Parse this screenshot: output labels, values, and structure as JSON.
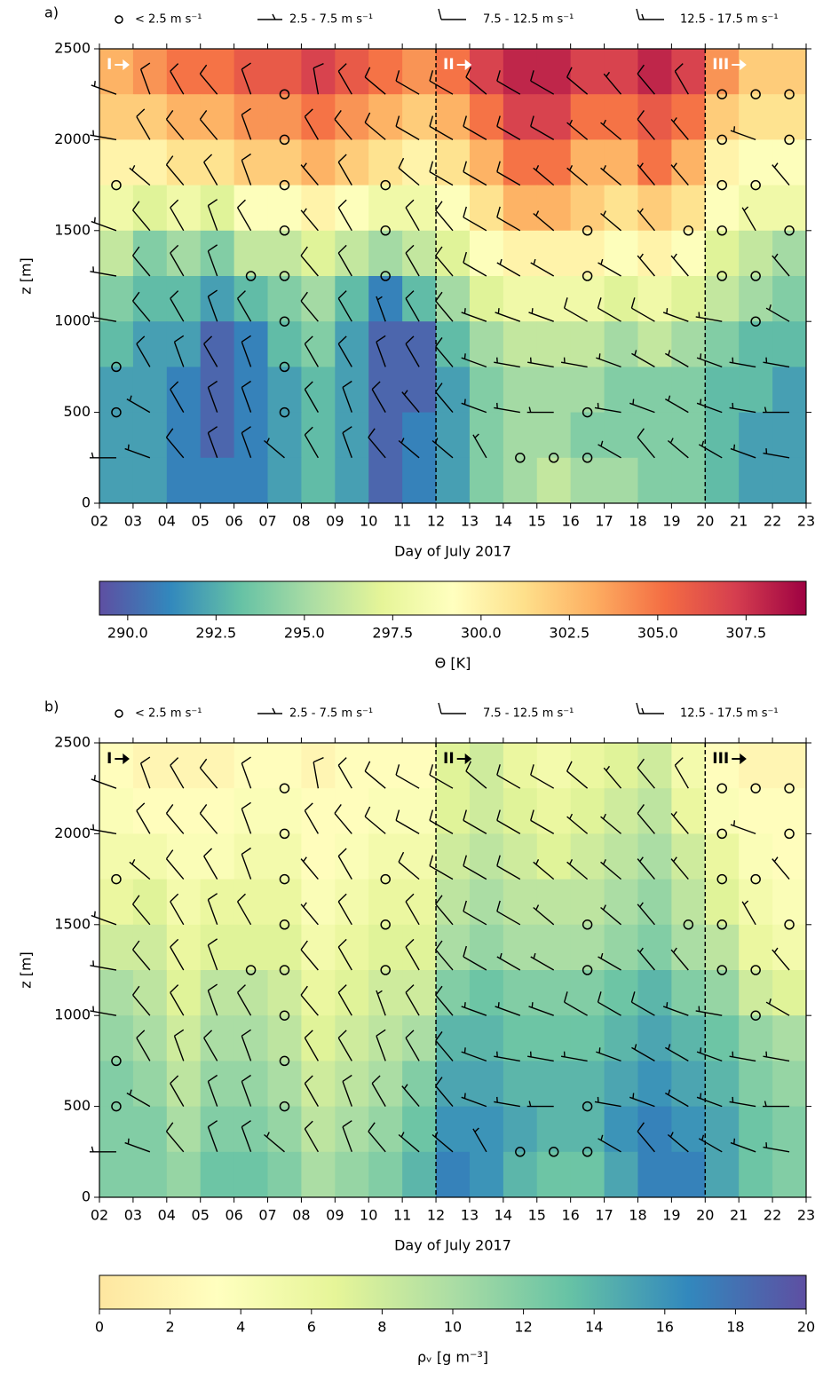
{
  "wind_barbs": {
    "x": [
      2.5,
      3.5,
      4.5,
      5.5,
      6.5,
      7.5,
      8.5,
      9.5,
      10.5,
      11.5,
      12.5,
      13.5,
      14.5,
      15.5,
      16.5,
      17.5,
      18.5,
      19.5,
      20.5,
      21.5,
      22.5
    ],
    "z": [
      2250,
      2000,
      1750,
      1500,
      1250,
      1000,
      750,
      500,
      250
    ],
    "speed": [
      [
        5,
        8,
        9,
        9,
        10,
        1,
        9,
        8,
        10,
        9,
        12,
        9,
        10,
        9,
        8,
        7,
        9,
        8,
        1,
        1,
        1
      ],
      [
        5,
        8,
        9,
        9,
        9,
        1,
        8,
        8,
        9,
        8,
        9,
        8,
        9,
        8,
        7,
        7,
        8,
        6,
        1,
        7,
        1
      ],
      [
        1,
        6,
        9,
        9,
        9,
        1,
        7,
        9,
        1,
        8,
        9,
        8,
        8,
        7,
        7,
        6,
        6,
        6,
        1,
        1,
        6
      ],
      [
        5,
        9,
        9,
        9,
        8,
        1,
        7,
        9,
        1,
        9,
        8,
        8,
        8,
        7,
        1,
        6,
        6,
        1,
        1,
        7,
        1
      ],
      [
        5,
        8,
        8,
        9,
        1,
        1,
        8,
        8,
        1,
        8,
        8,
        8,
        7,
        7,
        1,
        6,
        7,
        6,
        1,
        1,
        6
      ],
      [
        5,
        8,
        9,
        8,
        8,
        1,
        8,
        9,
        7,
        8,
        8,
        7,
        7,
        7,
        8,
        8,
        8,
        7,
        7,
        1,
        6
      ],
      [
        1,
        8,
        9,
        8,
        8,
        1,
        8,
        8,
        8,
        8,
        8,
        7,
        7,
        7,
        7,
        7,
        7,
        7,
        6,
        6,
        6
      ],
      [
        1,
        7,
        8,
        8,
        8,
        1,
        8,
        8,
        8,
        7,
        8,
        7,
        7,
        6,
        1,
        7,
        7,
        6,
        6,
        7,
        6
      ],
      [
        6,
        7,
        8,
        8,
        8,
        6,
        8,
        8,
        8,
        7,
        7,
        7,
        1,
        1,
        1,
        7,
        8,
        6,
        7,
        7,
        6
      ]
    ],
    "direction": [
      [
        290,
        340,
        330,
        320,
        340,
        0,
        350,
        330,
        310,
        300,
        300,
        310,
        300,
        300,
        310,
        320,
        320,
        330,
        0,
        0,
        0
      ],
      [
        280,
        330,
        320,
        320,
        340,
        0,
        330,
        320,
        310,
        300,
        300,
        300,
        300,
        300,
        310,
        310,
        320,
        320,
        0,
        290,
        0
      ],
      [
        0,
        310,
        320,
        330,
        340,
        0,
        320,
        330,
        0,
        310,
        300,
        300,
        300,
        310,
        310,
        310,
        320,
        320,
        0,
        0,
        320
      ],
      [
        290,
        320,
        330,
        340,
        330,
        0,
        320,
        330,
        0,
        330,
        320,
        300,
        300,
        310,
        0,
        310,
        320,
        0,
        0,
        330,
        0
      ],
      [
        280,
        320,
        330,
        340,
        0,
        0,
        320,
        330,
        0,
        330,
        320,
        300,
        300,
        300,
        0,
        300,
        320,
        320,
        0,
        0,
        320
      ],
      [
        280,
        320,
        330,
        340,
        330,
        0,
        320,
        330,
        340,
        330,
        320,
        290,
        290,
        290,
        300,
        300,
        300,
        290,
        280,
        0,
        300
      ],
      [
        0,
        330,
        340,
        330,
        340,
        0,
        330,
        330,
        340,
        330,
        320,
        290,
        280,
        280,
        280,
        290,
        300,
        300,
        290,
        280,
        280
      ],
      [
        0,
        300,
        330,
        340,
        340,
        0,
        330,
        340,
        330,
        320,
        320,
        290,
        280,
        270,
        0,
        280,
        290,
        300,
        290,
        280,
        270
      ],
      [
        270,
        290,
        320,
        340,
        340,
        310,
        330,
        340,
        320,
        310,
        310,
        330,
        0,
        0,
        0,
        300,
        320,
        310,
        300,
        290,
        280
      ]
    ]
  },
  "chart_data": [
    {
      "type": "heatmap",
      "panel_label": "a)",
      "legend": [
        "< 2.5 m s⁻¹",
        "2.5 - 7.5 m s⁻¹",
        "7.5 - 12.5 m s⁻¹",
        "12.5 - 17.5 m s⁻¹"
      ],
      "x": [
        2.5,
        3.5,
        4.5,
        5.5,
        6.5,
        7.5,
        8.5,
        9.5,
        10.5,
        11.5,
        12.5,
        13.5,
        14.5,
        15.5,
        16.5,
        17.5,
        18.5,
        19.5,
        20.5,
        21.5,
        22.5
      ],
      "z": [
        2375,
        2125,
        1875,
        1625,
        1375,
        1125,
        875,
        625,
        375,
        125
      ],
      "values": [
        [
          303,
          304,
          305,
          305,
          306,
          306,
          307,
          306,
          305,
          304,
          305,
          307,
          308,
          308,
          307,
          307,
          308,
          307,
          304,
          302,
          302
        ],
        [
          302,
          302,
          303,
          303,
          304,
          304,
          305,
          304,
          303,
          302,
          303,
          305,
          307,
          307,
          305,
          305,
          306,
          305,
          302,
          301,
          301
        ],
        [
          300,
          300,
          301,
          301,
          302,
          302,
          303,
          302,
          301,
          300,
          301,
          303,
          305,
          305,
          303,
          303,
          305,
          303,
          300,
          299,
          299
        ],
        [
          298,
          297,
          298,
          297,
          299,
          299,
          300,
          299,
          298,
          298,
          299,
          301,
          303,
          303,
          302,
          301,
          302,
          301,
          299,
          298,
          298
        ],
        [
          296,
          294,
          295,
          294,
          296,
          296,
          297,
          296,
          295,
          296,
          297,
          299,
          300,
          300,
          300,
          299,
          300,
          299,
          297,
          296,
          295
        ],
        [
          294,
          293,
          293,
          292,
          293,
          294,
          295,
          293,
          291,
          293,
          295,
          297,
          298,
          298,
          298,
          297,
          298,
          297,
          296,
          295,
          294
        ],
        [
          293,
          292,
          292,
          290,
          291,
          293,
          294,
          292,
          290,
          290,
          293,
          295,
          296,
          296,
          296,
          295,
          296,
          295,
          294,
          293,
          293
        ],
        [
          292,
          292,
          291,
          290,
          291,
          292,
          293,
          292,
          290,
          290,
          292,
          294,
          295,
          295,
          295,
          294,
          294,
          294,
          293,
          293,
          292
        ],
        [
          292,
          292,
          291,
          290,
          291,
          292,
          293,
          292,
          290,
          291,
          292,
          294,
          295,
          295,
          294,
          294,
          294,
          294,
          293,
          292,
          292
        ],
        [
          292,
          292,
          291,
          291,
          291,
          292,
          293,
          292,
          290,
          291,
          292,
          294,
          295,
          296,
          295,
          295,
          294,
          294,
          293,
          292,
          292
        ]
      ],
      "xlim": [
        2,
        23
      ],
      "ylim": [
        0,
        2500
      ],
      "xticks": [
        {
          "value": 2,
          "label": "02"
        },
        {
          "value": 3,
          "label": "03"
        },
        {
          "value": 4,
          "label": "04"
        },
        {
          "value": 5,
          "label": "05"
        },
        {
          "value": 6,
          "label": "06"
        },
        {
          "value": 7,
          "label": "07"
        },
        {
          "value": 8,
          "label": "08"
        },
        {
          "value": 9,
          "label": "09"
        },
        10,
        11,
        12,
        13,
        14,
        15,
        16,
        17,
        18,
        19,
        20,
        21,
        22,
        23
      ],
      "yticks": [
        0,
        500,
        1000,
        1500,
        2000,
        2500
      ],
      "xlabel": "Day of July 2017",
      "ylabel": "z [m]",
      "colormap": [
        "#5e4fa2",
        "#3288bd",
        "#66c2a5",
        "#abdda4",
        "#e6f598",
        "#ffffbf",
        "#fee08b",
        "#fdae61",
        "#f46d43",
        "#d53e4f",
        "#9e0142"
      ],
      "clim": [
        289.2,
        309.2
      ],
      "cbar_ticks": [
        {
          "value": 290,
          "label": "290.0"
        },
        {
          "value": 292.5,
          "label": "292.5"
        },
        {
          "value": 295,
          "label": "295.0"
        },
        {
          "value": 297.5,
          "label": "297.5"
        },
        {
          "value": 300,
          "label": "300.0"
        },
        302.5,
        {
          "value": 305,
          "label": "305.0"
        },
        307.5
      ],
      "cbar_label": "Θ [K]",
      "dividers": [
        12,
        20
      ],
      "periods": [
        "I",
        "II",
        "III"
      ],
      "annotation_color": "#ffffff"
    },
    {
      "type": "heatmap",
      "panel_label": "b)",
      "legend": [
        "< 2.5 m s⁻¹",
        "2.5 - 7.5 m s⁻¹",
        "7.5 - 12.5 m s⁻¹",
        "12.5 - 17.5 m s⁻¹"
      ],
      "x": [
        2.5,
        3.5,
        4.5,
        5.5,
        6.5,
        7.5,
        8.5,
        9.5,
        10.5,
        11.5,
        12.5,
        13.5,
        14.5,
        15.5,
        16.5,
        17.5,
        18.5,
        19.5,
        20.5,
        21.5,
        22.5
      ],
      "z": [
        2375,
        2125,
        1875,
        1625,
        1375,
        1125,
        875,
        625,
        375,
        125
      ],
      "values": [
        [
          3,
          2,
          2,
          2,
          3,
          3,
          2,
          3,
          3,
          3,
          7,
          8,
          6,
          5,
          6,
          7,
          8,
          5,
          3,
          2,
          2
        ],
        [
          4,
          3,
          3,
          3,
          4,
          4,
          3,
          3,
          4,
          4,
          7,
          8,
          7,
          6,
          7,
          8,
          9,
          6,
          4,
          3,
          3
        ],
        [
          5,
          5,
          4,
          4,
          5,
          5,
          3,
          4,
          5,
          5,
          8,
          9,
          8,
          7,
          8,
          9,
          10,
          8,
          6,
          4,
          3
        ],
        [
          6,
          7,
          5,
          6,
          6,
          6,
          4,
          5,
          6,
          6,
          9,
          10,
          9,
          9,
          9,
          10,
          11,
          9,
          7,
          5,
          4
        ],
        [
          8,
          8,
          6,
          7,
          7,
          7,
          5,
          6,
          7,
          7,
          10,
          11,
          10,
          10,
          10,
          11,
          12,
          10,
          9,
          6,
          5
        ],
        [
          10,
          9,
          7,
          9,
          9,
          8,
          6,
          7,
          8,
          8,
          12,
          13,
          12,
          12,
          12,
          13,
          14,
          12,
          11,
          8,
          7
        ],
        [
          11,
          10,
          8,
          10,
          10,
          9,
          7,
          8,
          9,
          10,
          14,
          14,
          13,
          13,
          13,
          14,
          15,
          14,
          13,
          11,
          10
        ],
        [
          12,
          11,
          9,
          11,
          11,
          10,
          8,
          9,
          10,
          12,
          15,
          15,
          14,
          14,
          14,
          15,
          16,
          15,
          14,
          12,
          11
        ],
        [
          12,
          12,
          10,
          12,
          12,
          11,
          9,
          10,
          11,
          13,
          16,
          16,
          15,
          14,
          14,
          16,
          17,
          16,
          15,
          13,
          12
        ],
        [
          12,
          12,
          11,
          13,
          13,
          12,
          10,
          11,
          12,
          14,
          17,
          16,
          14,
          13,
          13,
          15,
          17,
          17,
          15,
          13,
          12
        ]
      ],
      "xlim": [
        2,
        23
      ],
      "ylim": [
        0,
        2500
      ],
      "xticks": [
        {
          "value": 2,
          "label": "02"
        },
        {
          "value": 3,
          "label": "03"
        },
        {
          "value": 4,
          "label": "04"
        },
        {
          "value": 5,
          "label": "05"
        },
        {
          "value": 6,
          "label": "06"
        },
        {
          "value": 7,
          "label": "07"
        },
        {
          "value": 8,
          "label": "08"
        },
        {
          "value": 9,
          "label": "09"
        },
        10,
        11,
        12,
        13,
        14,
        15,
        16,
        17,
        18,
        19,
        20,
        21,
        22,
        23
      ],
      "yticks": [
        0,
        500,
        1000,
        1500,
        2000,
        2500
      ],
      "xlabel": "Day of July 2017",
      "ylabel": "z [m]",
      "colormap": [
        "#fee6a0",
        "#ffffbf",
        "#e6f598",
        "#abdda4",
        "#66c2a5",
        "#3288bd",
        "#5e4fa2"
      ],
      "clim": [
        0,
        20
      ],
      "cbar_ticks": [
        0,
        2,
        4,
        6,
        8,
        10,
        12,
        14,
        16,
        18,
        20
      ],
      "cbar_label": "ρᵥ [g m⁻³]",
      "dividers": [
        12,
        20
      ],
      "periods": [
        "I",
        "II",
        "III"
      ],
      "annotation_color": "#000000"
    }
  ]
}
